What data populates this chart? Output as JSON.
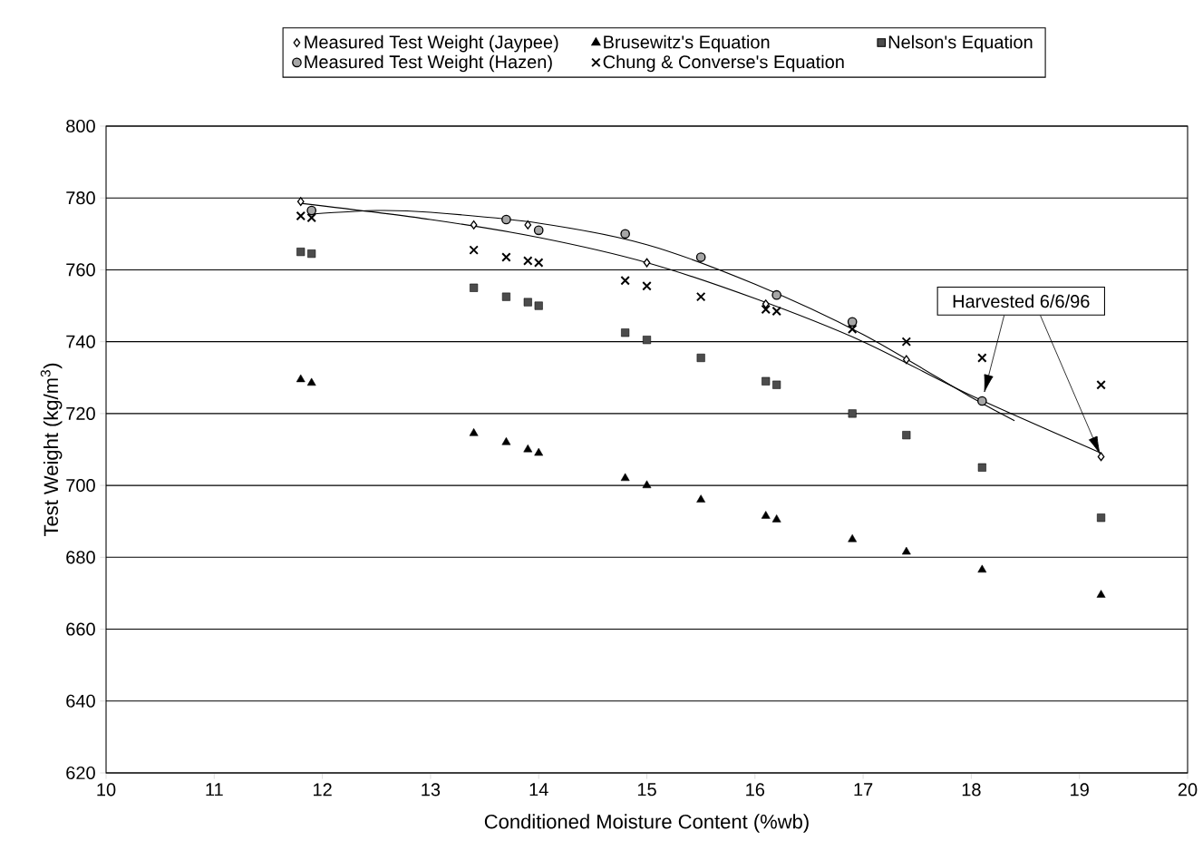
{
  "chart_data": {
    "type": "scatter",
    "xlabel": "Conditioned Moisture Content (%wb)",
    "ylabel": "Test Weight (kg/m$^{3}$)",
    "xlim": [
      10,
      20
    ],
    "ylim": [
      620,
      800
    ],
    "xticks": [
      10,
      11,
      12,
      13,
      14,
      15,
      16,
      17,
      18,
      19,
      20
    ],
    "yticks": [
      620,
      640,
      660,
      680,
      700,
      720,
      740,
      760,
      780,
      800
    ],
    "grid": "y",
    "legend": "top",
    "annotations": [
      "Harvested 6/6/96"
    ],
    "series": [
      {
        "name": "Measured Test Weight (Jaypee)",
        "color": "#000000",
        "marker": "diamond",
        "x": [
          11.8,
          13.4,
          13.9,
          15.0,
          16.1,
          17.4,
          19.2
        ],
        "values": [
          779,
          772.5,
          772.5,
          762,
          750.5,
          735,
          708
        ]
      },
      {
        "name": "Brusewitz's Equation",
        "color": "#000000",
        "marker": "triangle",
        "x": [
          11.8,
          11.9,
          13.4,
          13.7,
          13.9,
          14.0,
          14.8,
          15.0,
          15.5,
          16.1,
          16.2,
          16.9,
          17.4,
          18.1,
          19.2
        ],
        "values": [
          729.5,
          728.5,
          714.5,
          712,
          710,
          709,
          702,
          700,
          696,
          691.5,
          690.5,
          685,
          681.5,
          676.5,
          669.5
        ]
      },
      {
        "name": "Nelson's Equation",
        "color": "#000000",
        "marker": "square",
        "x": [
          11.8,
          11.9,
          13.4,
          13.7,
          13.9,
          14.0,
          14.8,
          15.0,
          15.5,
          16.1,
          16.2,
          16.9,
          17.4,
          18.1,
          19.2
        ],
        "values": [
          765,
          764.5,
          755,
          752.5,
          751,
          750,
          742.5,
          740.5,
          735.5,
          729,
          728,
          720,
          714,
          705,
          691
        ]
      },
      {
        "name": "Measured Test Weight (Hazen)",
        "color": "#000000",
        "marker": "circle",
        "x": [
          11.9,
          13.7,
          14.0,
          14.8,
          15.5,
          16.2,
          16.9,
          18.1
        ],
        "values": [
          776.5,
          774,
          771,
          770,
          763.5,
          753,
          745.5,
          723.5
        ]
      },
      {
        "name": "Chung & Converse's Equation",
        "color": "#000000",
        "marker": "cross",
        "x": [
          11.8,
          11.9,
          13.4,
          13.7,
          13.9,
          14.0,
          14.8,
          15.0,
          15.5,
          16.1,
          16.2,
          16.9,
          17.4,
          18.1,
          19.2
        ],
        "values": [
          775,
          774.5,
          765.5,
          763.5,
          762.5,
          762,
          757,
          755.5,
          752.5,
          749,
          748.5,
          743.5,
          740,
          735.5,
          728
        ]
      },
      {
        "type": "line",
        "color": "#000000",
        "x": [
          11.8,
          13,
          14,
          15,
          16,
          17,
          18,
          19.2
        ],
        "values": [
          778.5,
          774,
          769,
          762,
          752,
          740,
          725,
          709
        ]
      },
      {
        "type": "line",
        "color": "#000000",
        "x": [
          11.9,
          12.5,
          13,
          14,
          15,
          16,
          17,
          18,
          18.4
        ],
        "values": [
          775.5,
          776.5,
          776,
          773,
          767,
          756,
          742,
          724.5,
          718
        ]
      }
    ]
  }
}
